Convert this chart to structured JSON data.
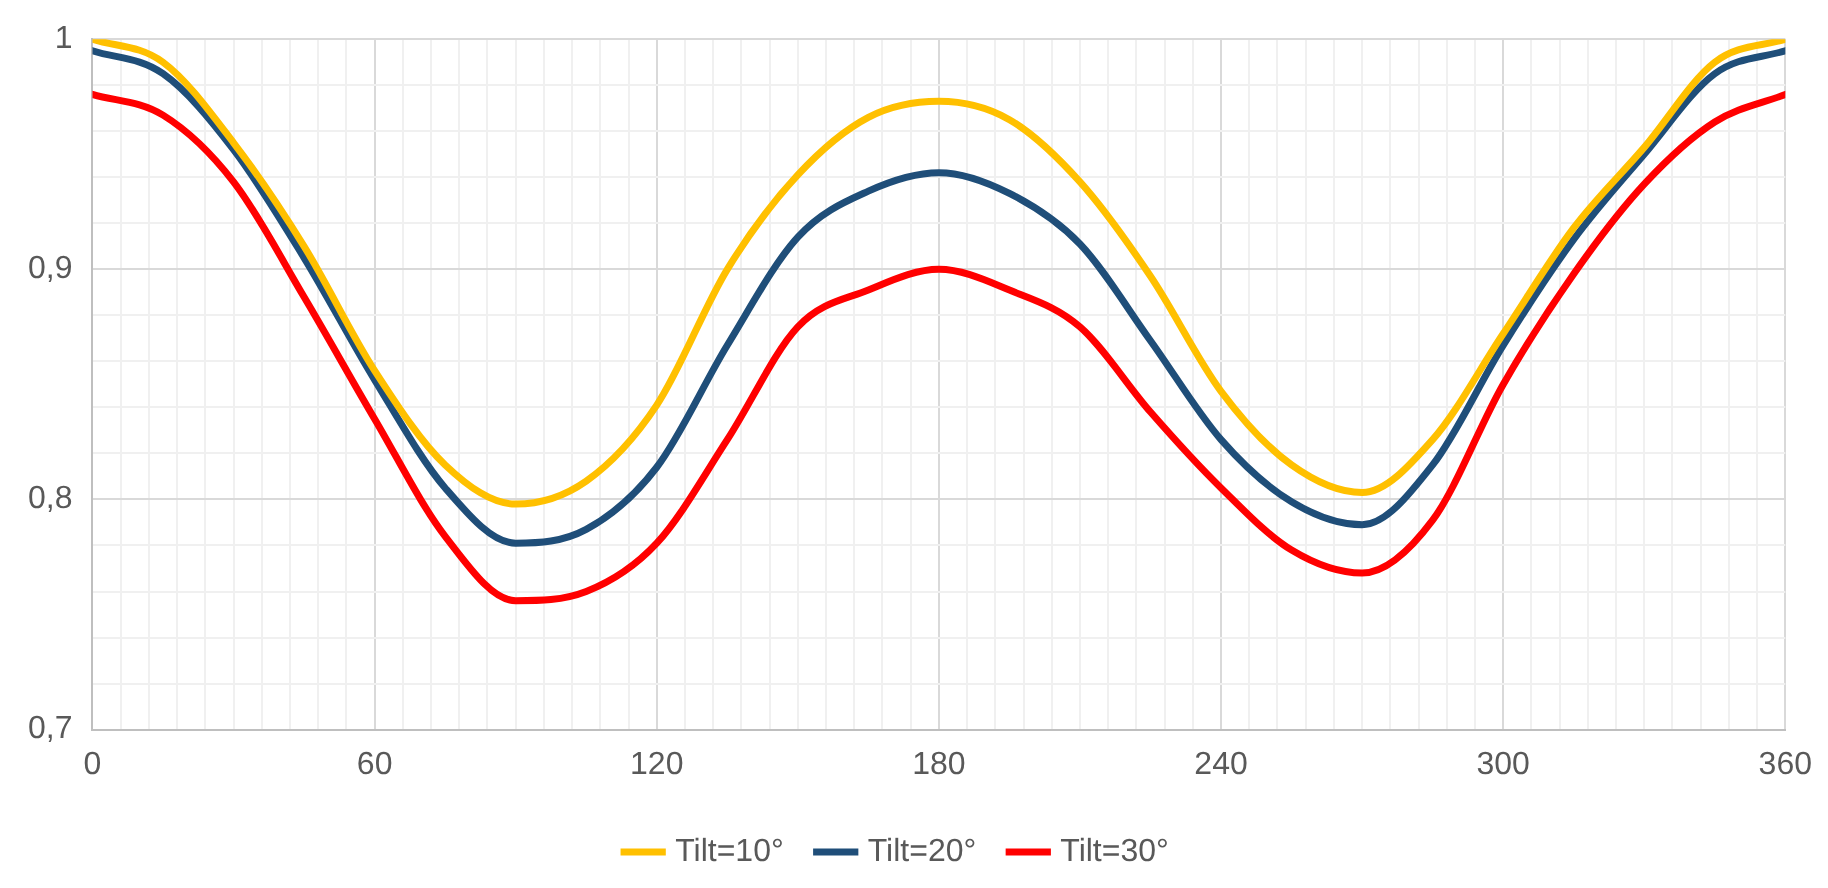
{
  "chart_data": {
    "type": "line",
    "x": [
      0,
      15,
      30,
      45,
      60,
      75,
      90,
      105,
      120,
      135,
      150,
      165,
      180,
      195,
      210,
      225,
      240,
      255,
      270,
      285,
      300,
      315,
      330,
      345,
      360
    ],
    "series": [
      {
        "name": "Tilt=10°",
        "color": "#ffc000",
        "values": [
          1.0,
          0.99,
          0.955,
          0.91,
          0.856,
          0.815,
          0.798,
          0.808,
          0.841,
          0.9,
          0.941,
          0.966,
          0.973,
          0.965,
          0.938,
          0.897,
          0.847,
          0.815,
          0.803,
          0.826,
          0.872,
          0.918,
          0.953,
          0.99,
          1.0
        ]
      },
      {
        "name": "Tilt=20°",
        "color": "#1f4e79",
        "values": [
          0.995,
          0.985,
          0.952,
          0.905,
          0.852,
          0.805,
          0.781,
          0.787,
          0.814,
          0.867,
          0.914,
          0.934,
          0.942,
          0.933,
          0.911,
          0.869,
          0.826,
          0.799,
          0.789,
          0.815,
          0.867,
          0.913,
          0.95,
          0.985,
          0.995
        ]
      },
      {
        "name": "Tilt=30°",
        "color": "#ff0000",
        "values": [
          0.976,
          0.967,
          0.938,
          0.888,
          0.835,
          0.784,
          0.756,
          0.76,
          0.781,
          0.826,
          0.875,
          0.891,
          0.9,
          0.891,
          0.875,
          0.838,
          0.805,
          0.778,
          0.768,
          0.791,
          0.85,
          0.898,
          0.937,
          0.964,
          0.976
        ]
      }
    ],
    "xlim": [
      0,
      360
    ],
    "xticks": [
      0,
      {
        "value": 6,
        "label": null
      },
      {
        "value": 12,
        "label": null
      },
      {
        "value": 18,
        "label": null
      },
      {
        "value": 24,
        "label": null
      },
      {
        "value": 30,
        "label": null
      },
      {
        "value": 36,
        "label": null
      },
      {
        "value": 42,
        "label": null
      },
      {
        "value": 48,
        "label": null
      },
      {
        "value": 54,
        "label": null
      },
      60,
      {
        "value": 66,
        "label": null
      },
      {
        "value": 72,
        "label": null
      },
      {
        "value": 78,
        "label": null
      },
      {
        "value": 84,
        "label": null
      },
      {
        "value": 90,
        "label": null
      },
      {
        "value": 96,
        "label": null
      },
      {
        "value": 102,
        "label": null
      },
      {
        "value": 108,
        "label": null
      },
      {
        "value": 114,
        "label": null
      },
      120,
      {
        "value": 126,
        "label": null
      },
      {
        "value": 132,
        "label": null
      },
      {
        "value": 138,
        "label": null
      },
      {
        "value": 144,
        "label": null
      },
      {
        "value": 150,
        "label": null
      },
      {
        "value": 156,
        "label": null
      },
      {
        "value": 162,
        "label": null
      },
      {
        "value": 168,
        "label": null
      },
      {
        "value": 174,
        "label": null
      },
      180,
      {
        "value": 186,
        "label": null
      },
      {
        "value": 192,
        "label": null
      },
      {
        "value": 198,
        "label": null
      },
      {
        "value": 204,
        "label": null
      },
      {
        "value": 210,
        "label": null
      },
      {
        "value": 216,
        "label": null
      },
      {
        "value": 222,
        "label": null
      },
      {
        "value": 228,
        "label": null
      },
      {
        "value": 234,
        "label": null
      },
      240,
      {
        "value": 246,
        "label": null
      },
      {
        "value": 252,
        "label": null
      },
      {
        "value": 258,
        "label": null
      },
      {
        "value": 264,
        "label": null
      },
      {
        "value": 270,
        "label": null
      },
      {
        "value": 276,
        "label": null
      },
      {
        "value": 282,
        "label": null
      },
      {
        "value": 288,
        "label": null
      },
      {
        "value": 294,
        "label": null
      },
      300,
      {
        "value": 306,
        "label": null
      },
      {
        "value": 312,
        "label": null
      },
      {
        "value": 318,
        "label": null
      },
      {
        "value": 324,
        "label": null
      },
      {
        "value": 330,
        "label": null
      },
      {
        "value": 336,
        "label": null
      },
      {
        "value": 342,
        "label": null
      },
      {
        "value": 348,
        "label": null
      },
      {
        "value": 354,
        "label": null
      },
      360
    ],
    "ylim": [
      0.7,
      1.0
    ],
    "yticks": [
      {
        "value": 0.7,
        "label": "0,7"
      },
      {
        "value": 0.72,
        "label": null
      },
      {
        "value": 0.74,
        "label": null
      },
      {
        "value": 0.76,
        "label": null
      },
      {
        "value": 0.78,
        "label": null
      },
      {
        "value": 0.8,
        "label": "0,8"
      },
      {
        "value": 0.82,
        "label": null
      },
      {
        "value": 0.84,
        "label": null
      },
      {
        "value": 0.86,
        "label": null
      },
      {
        "value": 0.88,
        "label": null
      },
      {
        "value": 0.9,
        "label": "0,9"
      },
      {
        "value": 0.92,
        "label": null
      },
      {
        "value": 0.94,
        "label": null
      },
      {
        "value": 0.96,
        "label": null
      },
      {
        "value": 0.98,
        "label": null
      },
      {
        "value": 1.0,
        "label": "1"
      }
    ],
    "grid": true,
    "legend": "bottom",
    "marker": "none",
    "line_style": "solid"
  }
}
